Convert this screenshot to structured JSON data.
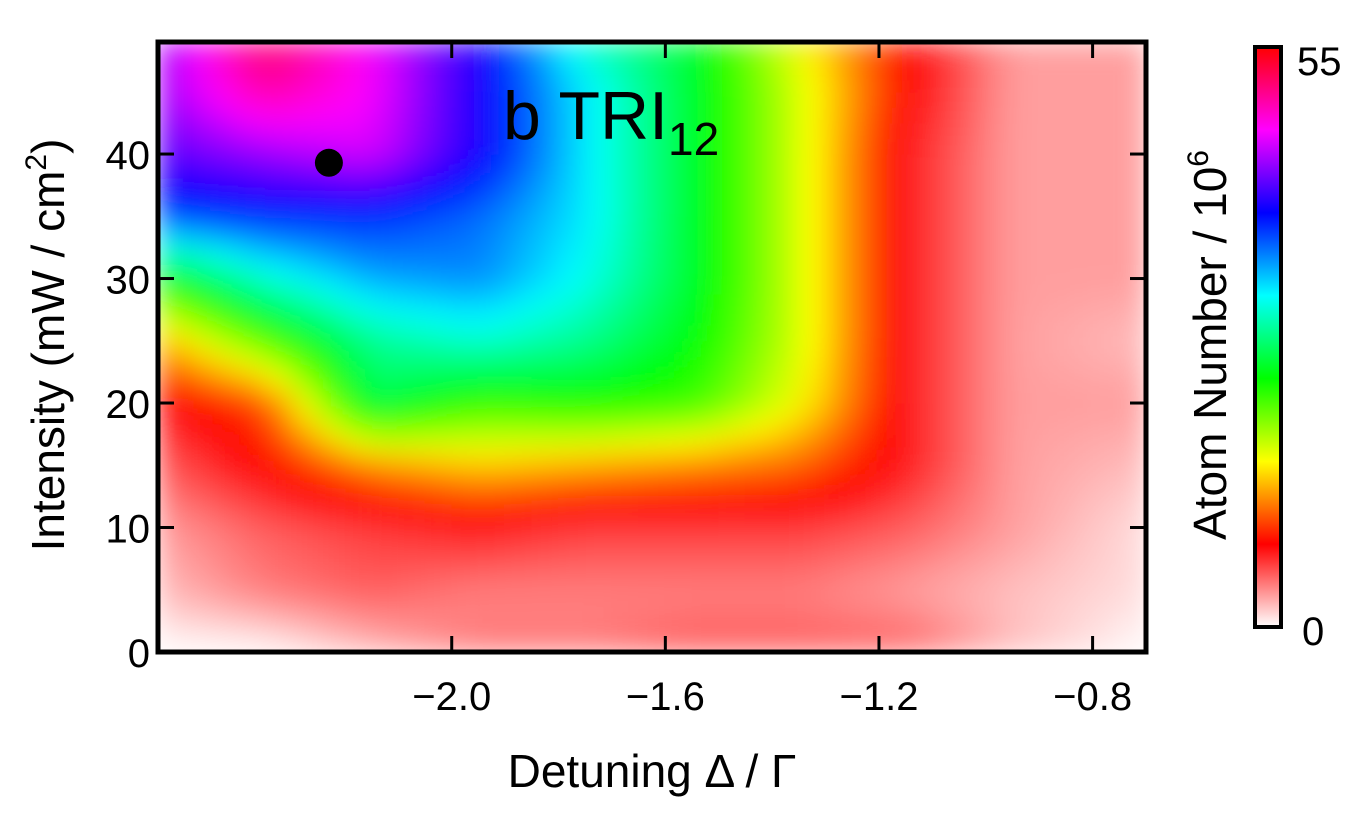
{
  "chart_data": {
    "type": "heatmap",
    "annotation": "b TRI",
    "annotation_sub": "12",
    "xlabel": "Detuning Δ / Γ",
    "ylabel_main": "Intensity (mW / cm",
    "ylabel_sup": "2",
    "ylabel_close": ")",
    "xlim": [
      -2.55,
      -0.7
    ],
    "ylim": [
      0,
      49
    ],
    "xticks": [
      -2.0,
      -1.6,
      -1.2,
      -0.8
    ],
    "xtick_labels": [
      "−2.0",
      "−1.6",
      "−1.2",
      "−0.8"
    ],
    "yticks": [
      0,
      10,
      20,
      30,
      40
    ],
    "ytick_labels": [
      "0",
      "10",
      "20",
      "30",
      "40"
    ],
    "colorbar": {
      "label_main": "Atom Number / 10",
      "label_sup": "6",
      "min": 0,
      "max": 55,
      "min_label": "0",
      "max_label": "55",
      "colormap": [
        "#ffffff",
        "#ff0000",
        "#ffff00",
        "#00ff00",
        "#00ffff",
        "#0000ff",
        "#ff00ff",
        "#ff0000"
      ]
    },
    "grid": {
      "x": [
        -2.55,
        -2.35,
        -2.15,
        -1.95,
        -1.75,
        -1.55,
        -1.35,
        -1.15,
        -0.95,
        -0.7
      ],
      "y": [
        0,
        5,
        10,
        15,
        20,
        25,
        30,
        35,
        40,
        45,
        49
      ],
      "z": [
        [
          0,
          0,
          2,
          4,
          4,
          5,
          5,
          5,
          2,
          0
        ],
        [
          2,
          4,
          5,
          4,
          4,
          4,
          4,
          3,
          2,
          1
        ],
        [
          3,
          5,
          6,
          7,
          6,
          6,
          6,
          5,
          3,
          1
        ],
        [
          5,
          8,
          12,
          14,
          13,
          12,
          11,
          7,
          3,
          2
        ],
        [
          7,
          10,
          26,
          22,
          23,
          22,
          16,
          7,
          3,
          3
        ],
        [
          13,
          21,
          28,
          30,
          28,
          24,
          17,
          7,
          3,
          2
        ],
        [
          23,
          30,
          34,
          35,
          31,
          25,
          17,
          7,
          3,
          3
        ],
        [
          37,
          38,
          38,
          36,
          32,
          25,
          17,
          7,
          3,
          3
        ],
        [
          42,
          44,
          46,
          40,
          32,
          25,
          17,
          7,
          3,
          3
        ],
        [
          44,
          50,
          47,
          40,
          32,
          25,
          17,
          8,
          3,
          3
        ],
        [
          44,
          52,
          47,
          40,
          30,
          25,
          16,
          8,
          3,
          3
        ]
      ]
    },
    "marker": {
      "x": -2.23,
      "y": 39.3
    }
  }
}
